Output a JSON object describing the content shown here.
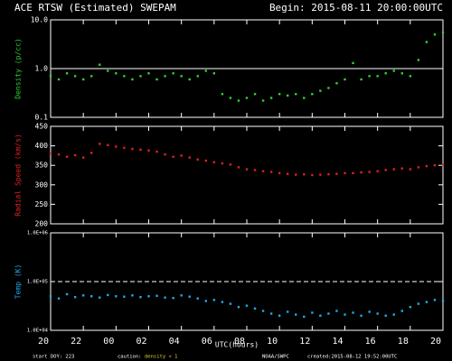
{
  "header": {
    "title": "ACE RTSW (Estimated) SWEPAM",
    "begin": "Begin: 2015-08-11 20:00:00UTC"
  },
  "footer": {
    "start": "start DOY: 223",
    "caution": "caution:",
    "density": "density < 1",
    "source": "NOAA/SWPC",
    "created": "created:2015-08-12 19:52:00UTC"
  },
  "x_axis": {
    "label": "UTC(hours)",
    "xlim": [
      0,
      24
    ],
    "xticks": [
      {
        "value": 0,
        "label": "20"
      },
      {
        "value": 2,
        "label": "22"
      },
      {
        "value": 4,
        "label": "00"
      },
      {
        "value": 6,
        "label": "02"
      },
      {
        "value": 8,
        "label": "04"
      },
      {
        "value": 10,
        "label": "06"
      },
      {
        "value": 12,
        "label": "08"
      },
      {
        "value": 14,
        "label": "10"
      },
      {
        "value": 16,
        "label": "12"
      },
      {
        "value": 18,
        "label": "14"
      },
      {
        "value": 20,
        "label": "16"
      },
      {
        "value": 22,
        "label": "18"
      },
      {
        "value": 24,
        "label": "20"
      }
    ]
  },
  "chart_data": [
    {
      "type": "scatter",
      "ylabel": "Density (p/cc)",
      "color": "#2ed12e",
      "log": true,
      "ylim": [
        0.1,
        10
      ],
      "yticks": [
        0.1,
        {
          "value": 1,
          "label": "1.0"
        },
        {
          "value": 10,
          "label": "10.0"
        }
      ],
      "hline": 1,
      "hline_dash": false,
      "x": [
        0,
        0.5,
        1,
        1.5,
        2,
        2.5,
        3,
        3.5,
        4,
        4.5,
        5,
        5.5,
        6,
        6.5,
        7,
        7.5,
        8,
        8.5,
        9,
        9.5,
        10,
        10.5,
        11,
        11.5,
        12,
        12.5,
        13,
        13.5,
        14,
        14.5,
        15,
        15.5,
        16,
        16.5,
        17,
        17.5,
        18,
        18.5,
        19,
        19.5,
        20,
        20.5,
        21,
        21.5,
        22,
        22.5,
        23,
        23.5,
        24
      ],
      "values": [
        0.7,
        0.6,
        0.8,
        0.7,
        0.6,
        0.7,
        1.2,
        0.9,
        0.8,
        0.7,
        0.6,
        0.7,
        0.8,
        0.6,
        0.7,
        0.8,
        0.7,
        0.6,
        0.7,
        0.9,
        0.8,
        0.3,
        0.25,
        0.22,
        0.25,
        0.3,
        0.22,
        0.25,
        0.3,
        0.28,
        0.3,
        0.25,
        0.3,
        0.35,
        0.4,
        0.5,
        0.6,
        1.3,
        0.6,
        0.7,
        0.7,
        0.8,
        0.9,
        0.8,
        0.7,
        1.5,
        3.5,
        5.0,
        5.5
      ]
    },
    {
      "type": "scatter",
      "ylabel": "Radial Speed (km/s)",
      "color": "#e02020",
      "log": false,
      "ylim": [
        200,
        450
      ],
      "yticks": [
        200,
        250,
        300,
        350,
        400,
        450
      ],
      "x": [
        0,
        0.5,
        1,
        1.5,
        2,
        2.5,
        3,
        3.5,
        4,
        4.5,
        5,
        5.5,
        6,
        6.5,
        7,
        7.5,
        8,
        8.5,
        9,
        9.5,
        10,
        10.5,
        11,
        11.5,
        12,
        12.5,
        13,
        13.5,
        14,
        14.5,
        15,
        15.5,
        16,
        16.5,
        17,
        17.5,
        18,
        18.5,
        19,
        19.5,
        20,
        20.5,
        21,
        21.5,
        22,
        22.5,
        23,
        23.5,
        24
      ],
      "values": [
        380,
        378,
        372,
        376,
        370,
        382,
        405,
        402,
        398,
        395,
        392,
        390,
        388,
        385,
        378,
        372,
        375,
        370,
        365,
        362,
        358,
        355,
        352,
        345,
        340,
        338,
        335,
        333,
        330,
        328,
        326,
        327,
        325,
        326,
        327,
        328,
        330,
        330,
        332,
        333,
        335,
        338,
        340,
        342,
        340,
        345,
        348,
        350,
        352
      ]
    },
    {
      "type": "scatter",
      "ylabel": "Temp (K)",
      "color": "#20a8e8",
      "log": true,
      "ylim": [
        10000,
        1000000
      ],
      "yticks": [
        {
          "value": 10000,
          "label": "1.0E+04"
        },
        {
          "value": 100000,
          "label": "1.0E+05"
        },
        {
          "value": 1000000,
          "label": "1.0E+06"
        }
      ],
      "hline": 100000,
      "hline_dash": true,
      "x": [
        0,
        0.5,
        1,
        1.5,
        2,
        2.5,
        3,
        3.5,
        4,
        4.5,
        5,
        5.5,
        6,
        6.5,
        7,
        7.5,
        8,
        8.5,
        9,
        9.5,
        10,
        10.5,
        11,
        11.5,
        12,
        12.5,
        13,
        13.5,
        14,
        14.5,
        15,
        15.5,
        16,
        16.5,
        17,
        17.5,
        18,
        18.5,
        19,
        19.5,
        20,
        20.5,
        21,
        21.5,
        22,
        22.5,
        23,
        23.5,
        24
      ],
      "values": [
        50000,
        45000,
        55000,
        48000,
        52000,
        50000,
        47000,
        53000,
        50000,
        49000,
        52000,
        48000,
        50000,
        51000,
        47000,
        46000,
        52000,
        49000,
        45000,
        40000,
        42000,
        38000,
        35000,
        30000,
        32000,
        28000,
        25000,
        22000,
        20000,
        24000,
        21000,
        19000,
        23000,
        20000,
        22000,
        25000,
        21000,
        23000,
        20000,
        24000,
        22000,
        20000,
        21000,
        25000,
        30000,
        35000,
        38000,
        42000,
        40000
      ]
    }
  ]
}
